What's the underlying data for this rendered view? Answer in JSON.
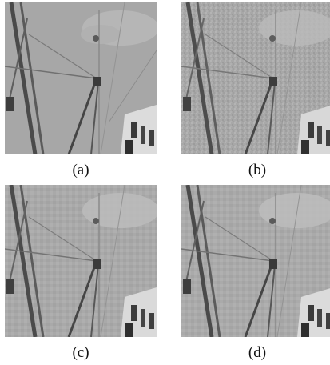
{
  "figure": {
    "panels": [
      {
        "id": "a",
        "caption": "(a)",
        "style": "original"
      },
      {
        "id": "b",
        "caption": "(b)",
        "style": "noisy"
      },
      {
        "id": "c",
        "caption": "(c)",
        "style": "restored"
      },
      {
        "id": "d",
        "caption": "(d)",
        "style": "restored"
      }
    ]
  }
}
